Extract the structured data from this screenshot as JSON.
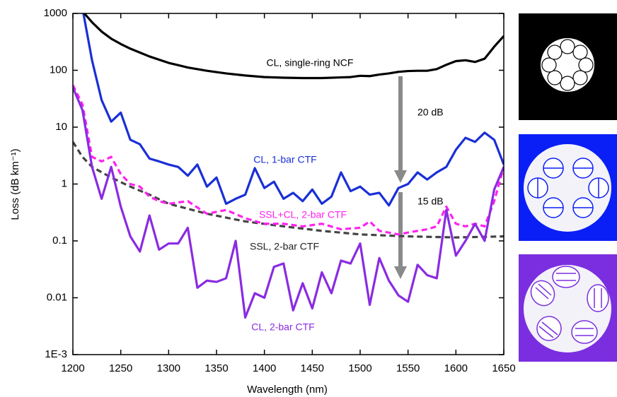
{
  "chart_data": {
    "type": "line",
    "xlabel": "Wavelength (nm)",
    "ylabel": "Loss (dB km⁻¹)",
    "log_y": true,
    "xlim": [
      1200,
      1650
    ],
    "ylim": [
      0.001,
      1000
    ],
    "xticks": [
      1200,
      1250,
      1300,
      1350,
      1400,
      1450,
      1500,
      1550,
      1600,
      1650
    ],
    "yticks": [
      {
        "value": 0.001,
        "label": "1E-3"
      },
      0.01,
      0.1,
      1,
      10,
      100,
      1000
    ],
    "annotations": [
      "20 dB",
      "15 dB"
    ],
    "series": [
      {
        "name": "CL, single-ring NCF",
        "color": "#000000",
        "dashed": false,
        "x": [
          1212,
          1220,
          1230,
          1240,
          1250,
          1260,
          1280,
          1300,
          1320,
          1340,
          1360,
          1380,
          1400,
          1420,
          1440,
          1460,
          1480,
          1490,
          1500,
          1510,
          1520,
          1530,
          1540,
          1550,
          1560,
          1570,
          1580,
          1590,
          1600,
          1610,
          1620,
          1630,
          1640,
          1650
        ],
        "values": [
          1000,
          700,
          480,
          360,
          290,
          240,
          175,
          135,
          112,
          98,
          88,
          81,
          76,
          74,
          73,
          73,
          75,
          76,
          80,
          79,
          84,
          88,
          94,
          97,
          98,
          98,
          105,
          125,
          145,
          150,
          140,
          160,
          260,
          400
        ]
      },
      {
        "name": "CL, 1-bar CTF",
        "color": "#1a2fd6",
        "dashed": false,
        "x": [
          1211,
          1220,
          1230,
          1240,
          1250,
          1260,
          1270,
          1280,
          1290,
          1300,
          1310,
          1320,
          1330,
          1340,
          1350,
          1360,
          1370,
          1380,
          1390,
          1400,
          1410,
          1420,
          1430,
          1440,
          1450,
          1460,
          1470,
          1480,
          1490,
          1500,
          1510,
          1520,
          1530,
          1540,
          1550,
          1560,
          1570,
          1580,
          1590,
          1600,
          1610,
          1620,
          1630,
          1640,
          1650
        ],
        "values": [
          1000,
          150,
          30,
          12.5,
          18,
          6,
          5,
          2.8,
          2.5,
          2.2,
          2,
          1.4,
          2.2,
          0.9,
          1.3,
          0.45,
          0.55,
          0.65,
          1.9,
          0.85,
          1.1,
          0.55,
          0.7,
          0.5,
          0.8,
          0.45,
          0.6,
          1.6,
          0.75,
          0.9,
          0.65,
          0.7,
          0.42,
          0.85,
          1,
          1.6,
          1.2,
          1.6,
          2,
          4,
          6.5,
          5.5,
          8,
          6,
          2.2
        ]
      },
      {
        "name": "SSL+CL, 2-bar CTF",
        "color": "#ff22ee",
        "dashed": true,
        "x": [
          1200,
          1210,
          1220,
          1230,
          1240,
          1250,
          1260,
          1270,
          1280,
          1290,
          1300,
          1320,
          1340,
          1360,
          1380,
          1400,
          1420,
          1440,
          1460,
          1480,
          1500,
          1510,
          1520,
          1540,
          1550,
          1560,
          1570,
          1580,
          1590,
          1600,
          1610,
          1620,
          1630,
          1640,
          1650
        ],
        "values": [
          55,
          25,
          3,
          2.5,
          3,
          1.5,
          1,
          0.9,
          0.6,
          0.5,
          0.45,
          0.5,
          0.3,
          0.35,
          0.25,
          0.2,
          0.2,
          0.18,
          0.2,
          0.16,
          0.17,
          0.22,
          0.15,
          0.13,
          0.14,
          0.15,
          0.16,
          0.18,
          0.4,
          0.2,
          0.18,
          0.2,
          0.18,
          0.5,
          2
        ]
      },
      {
        "name": "SSL, 2-bar CTF",
        "color": "#444444",
        "dashed": true,
        "x": [
          1200,
          1210,
          1220,
          1240,
          1260,
          1280,
          1300,
          1340,
          1380,
          1420,
          1460,
          1500,
          1550,
          1600,
          1650
        ],
        "values": [
          5.5,
          3,
          2,
          1.3,
          0.9,
          0.65,
          0.45,
          0.3,
          0.22,
          0.18,
          0.15,
          0.13,
          0.12,
          0.115,
          0.12
        ]
      },
      {
        "name": "CL, 2-bar CTF",
        "color": "#8a2be2",
        "dashed": false,
        "x": [
          1200,
          1210,
          1220,
          1230,
          1240,
          1250,
          1260,
          1270,
          1280,
          1290,
          1300,
          1310,
          1320,
          1330,
          1340,
          1350,
          1360,
          1370,
          1380,
          1390,
          1400,
          1410,
          1420,
          1430,
          1440,
          1450,
          1460,
          1470,
          1480,
          1490,
          1500,
          1510,
          1520,
          1530,
          1540,
          1550,
          1560,
          1570,
          1580,
          1590,
          1600,
          1610,
          1620,
          1630,
          1640,
          1650
        ],
        "values": [
          50,
          20,
          2,
          0.55,
          2,
          0.4,
          0.12,
          0.065,
          0.28,
          0.07,
          0.09,
          0.09,
          0.17,
          0.015,
          0.02,
          0.019,
          0.022,
          0.1,
          0.0045,
          0.012,
          0.01,
          0.035,
          0.04,
          0.006,
          0.018,
          0.0065,
          0.028,
          0.012,
          0.045,
          0.04,
          0.09,
          0.0075,
          0.05,
          0.02,
          0.011,
          0.0085,
          0.038,
          0.025,
          0.022,
          0.35,
          0.055,
          0.1,
          0.2,
          0.1,
          0.8,
          2
        ]
      }
    ]
  }
}
